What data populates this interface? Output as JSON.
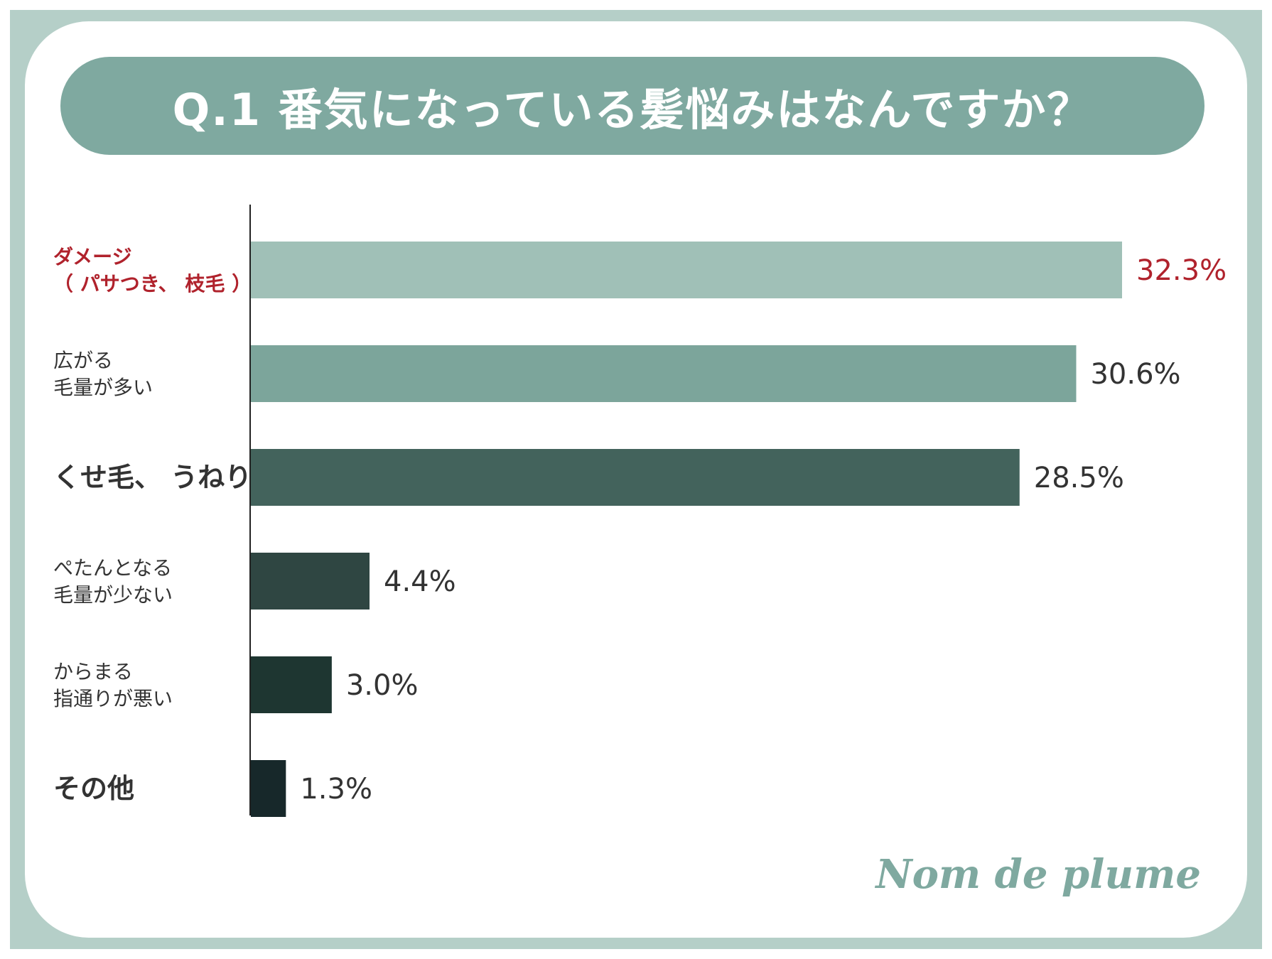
{
  "title": "Q.1 番気になっている髪悩みはなんですか？",
  "logo": "Nom de plume",
  "chart_data": {
    "type": "bar",
    "orientation": "horizontal",
    "title": "Q.1 番気になっている髪悩みはなんですか？",
    "categories": [
      [
        "ダメージ",
        "（ パサつき、 枝毛 ）"
      ],
      [
        "広がる",
        "毛量が多い"
      ],
      [
        "くせ毛、 うねり"
      ],
      [
        "ぺたんとなる",
        "毛量が少ない"
      ],
      [
        "からまる",
        "指通りが悪い"
      ],
      [
        "その他"
      ]
    ],
    "values": [
      32.3,
      30.6,
      28.5,
      4.4,
      3.0,
      1.3
    ],
    "value_labels": [
      "32.3%",
      "30.6%",
      "28.5%",
      "4.4%",
      "3.0%",
      "1.3%"
    ],
    "bar_colors": [
      "#a0c0b7",
      "#7ca59b",
      "#43635c",
      "#2f4642",
      "#1e3631",
      "#17282a"
    ],
    "highlight_index": 0,
    "highlight_color": "#b0222c",
    "label_color": "#333333",
    "xlim": [
      0,
      32.3
    ],
    "grid": false,
    "legend": "none"
  }
}
